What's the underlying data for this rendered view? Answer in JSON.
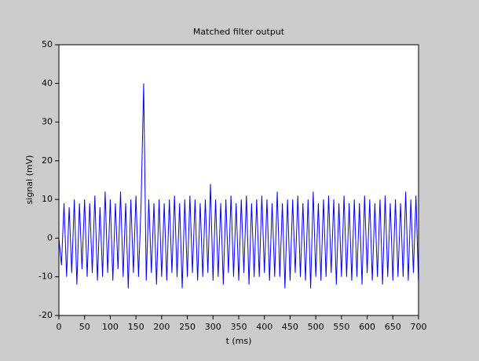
{
  "chart_data": {
    "type": "line",
    "title": "Matched filter output",
    "x_label": "t (ms)",
    "y_label": "signal (mV)",
    "x": [
      0,
      5,
      10,
      15,
      20,
      25,
      30,
      35,
      40,
      45,
      50,
      55,
      60,
      65,
      70,
      75,
      80,
      85,
      90,
      95,
      100,
      105,
      110,
      115,
      120,
      125,
      130,
      135,
      140,
      145,
      150,
      155,
      160,
      165,
      170,
      175,
      180,
      185,
      190,
      195,
      200,
      205,
      210,
      215,
      220,
      225,
      230,
      235,
      240,
      245,
      250,
      255,
      260,
      265,
      270,
      275,
      280,
      285,
      290,
      295,
      300,
      305,
      310,
      315,
      320,
      325,
      330,
      335,
      340,
      345,
      350,
      355,
      360,
      365,
      370,
      375,
      380,
      385,
      390,
      395,
      400,
      405,
      410,
      415,
      420,
      425,
      430,
      435,
      440,
      445,
      450,
      455,
      460,
      465,
      470,
      475,
      480,
      485,
      490,
      495,
      500,
      505,
      510,
      515,
      520,
      525,
      530,
      535,
      540,
      545,
      550,
      555,
      560,
      565,
      570,
      575,
      580,
      585,
      590,
      595,
      600,
      605,
      610,
      615,
      620,
      625,
      630,
      635,
      640,
      645,
      650,
      655,
      660,
      665,
      670,
      675,
      680,
      685,
      690,
      695,
      700
    ],
    "series": [
      {
        "name": "signal",
        "color": "#0000ff",
        "values": [
          0,
          -7,
          9,
          -10,
          8,
          -9,
          10,
          -12,
          9,
          -8,
          10,
          -10,
          9,
          -9,
          11,
          -11,
          8,
          -10,
          12,
          -9,
          10,
          -11,
          9,
          -8,
          12,
          -10,
          9,
          -13,
          10,
          -9,
          11,
          -10,
          9,
          40,
          -11,
          10,
          -9,
          9,
          -12,
          10,
          -10,
          9,
          -11,
          10,
          -9,
          11,
          -10,
          9,
          -13,
          10,
          -10,
          11,
          -9,
          10,
          -11,
          9,
          -10,
          10,
          -9,
          14,
          -11,
          10,
          -10,
          9,
          -12,
          10,
          -9,
          11,
          -10,
          9,
          -11,
          10,
          -9,
          11,
          -12,
          9,
          -10,
          10,
          -10,
          11,
          -9,
          10,
          -11,
          9,
          -10,
          12,
          -10,
          9,
          -13,
          10,
          -11,
          10,
          -9,
          11,
          -10,
          9,
          -11,
          10,
          -13,
          12,
          -10,
          9,
          -11,
          10,
          -10,
          11,
          -9,
          10,
          -12,
          9,
          -10,
          11,
          -10,
          9,
          -11,
          10,
          -10,
          9,
          -12,
          11,
          -9,
          10,
          -11,
          9,
          -10,
          10,
          -12,
          11,
          -10,
          9,
          -11,
          10,
          -10,
          9,
          -10,
          12,
          -11,
          10,
          -9,
          11,
          -12
        ]
      }
    ],
    "xlim": [
      0,
      700
    ],
    "ylim": [
      -20,
      50
    ],
    "xticks": [
      0,
      50,
      100,
      150,
      200,
      250,
      300,
      350,
      400,
      450,
      500,
      550,
      600,
      650,
      700
    ],
    "yticks": [
      -20,
      -10,
      0,
      10,
      20,
      30,
      40,
      50
    ]
  }
}
